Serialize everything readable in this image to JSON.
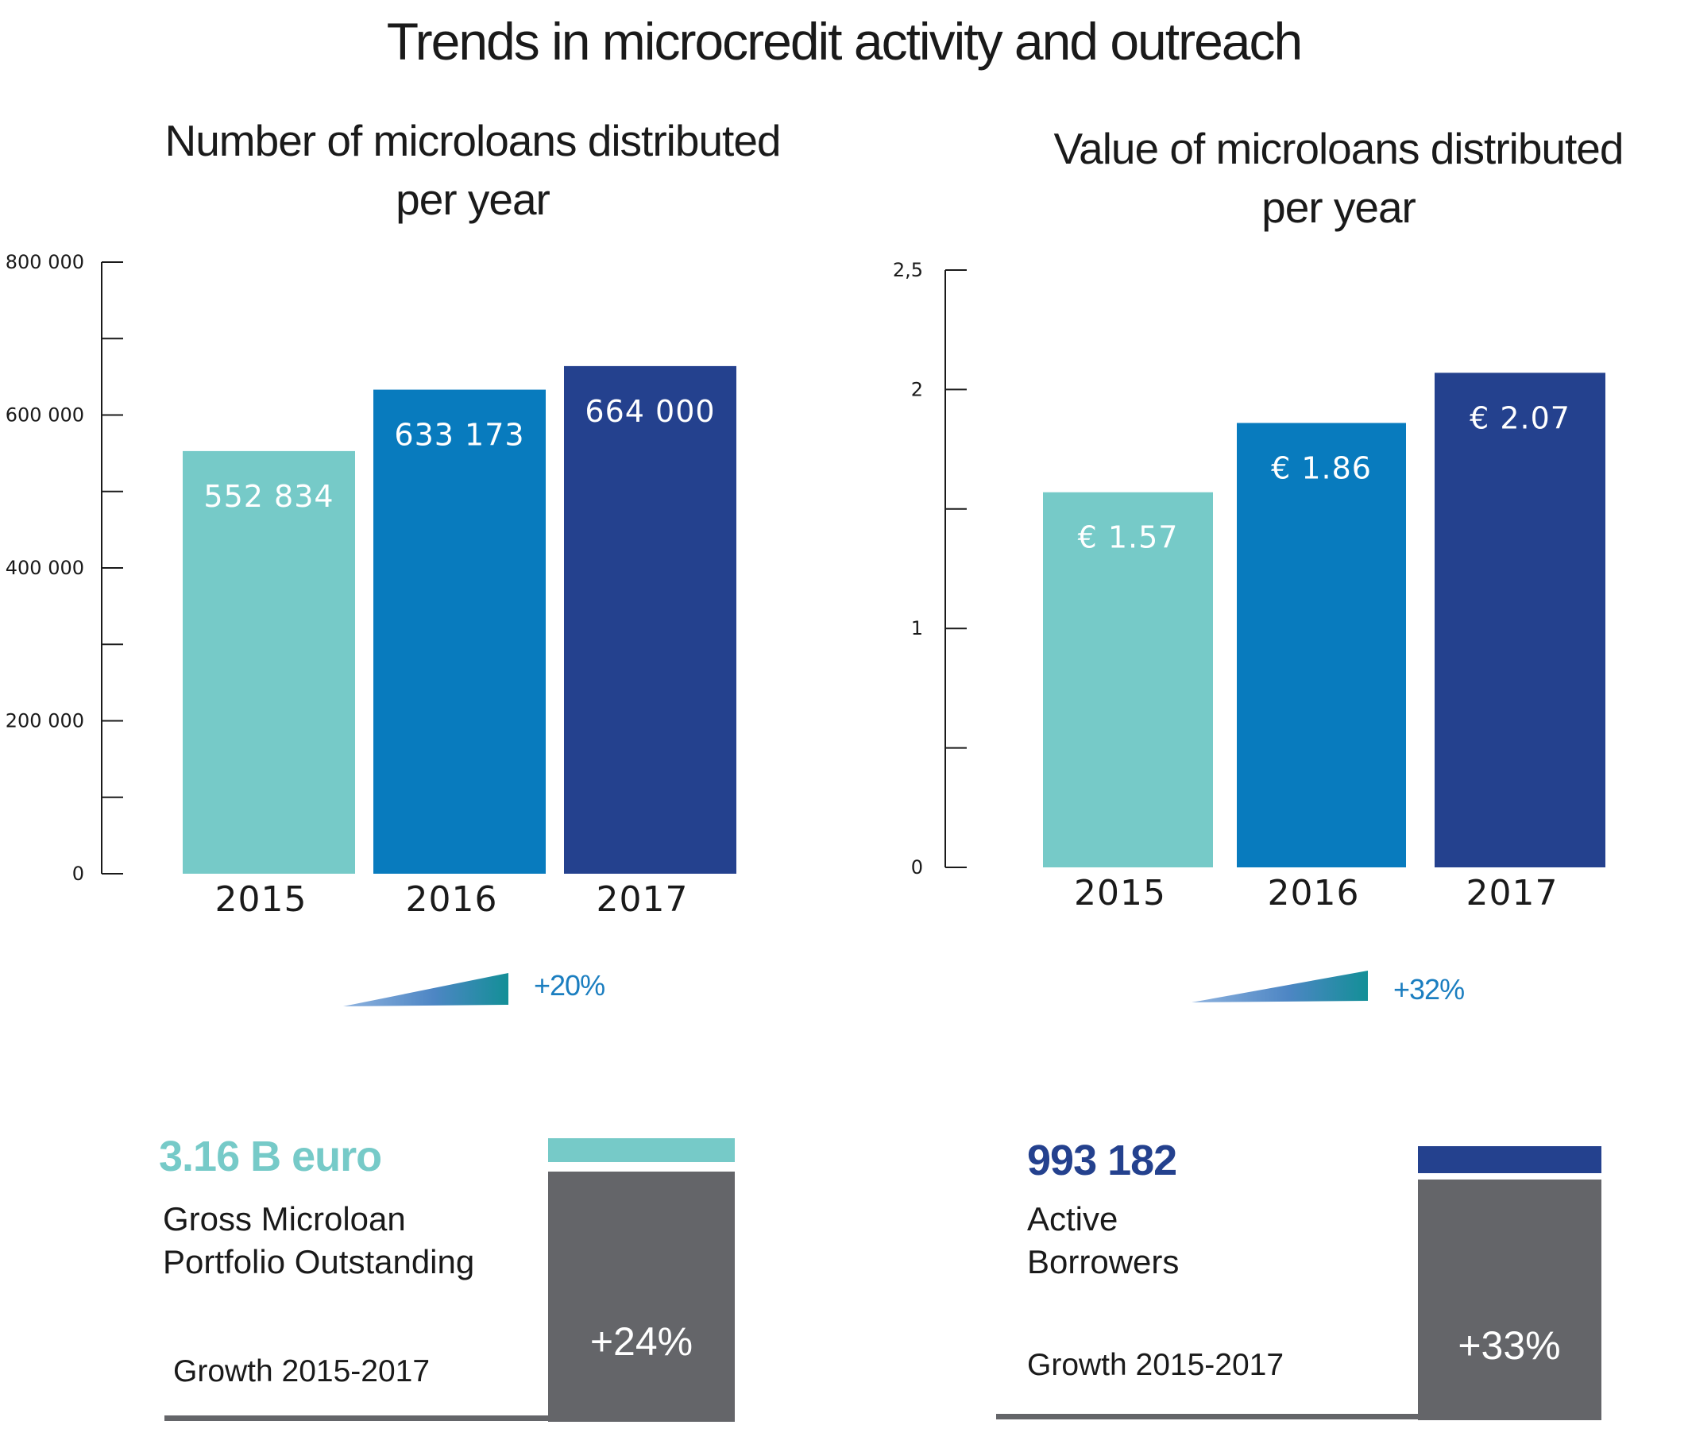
{
  "title": "Trends in microcredit activity and outreach",
  "colors": {
    "c2015": "#76cac8",
    "c2016": "#087bbe",
    "c2017": "#24418e",
    "grey": "#646569",
    "growth_text": "#1b7ec0"
  },
  "chart_data": [
    {
      "type": "bar",
      "title_lines": [
        "Number of microloans distributed",
        "per year"
      ],
      "categories": [
        "2015",
        "2016",
        "2017"
      ],
      "values": [
        552834,
        633173,
        664000
      ],
      "data_labels": [
        "552 834",
        "633 173",
        "664 000"
      ],
      "ylim": [
        0,
        800000
      ],
      "yticks": [
        0,
        200000,
        400000,
        600000,
        800000
      ],
      "ytick_labels": [
        "0",
        "200 000",
        "400 000",
        "600 000",
        "800 000"
      ],
      "minor_ticks": true,
      "grid": false,
      "growth_label": "+20%"
    },
    {
      "type": "bar",
      "title_lines": [
        "Value of microloans distributed",
        "per year"
      ],
      "categories": [
        "2015",
        "2016",
        "2017"
      ],
      "values": [
        1.57,
        1.86,
        2.07
      ],
      "data_labels": [
        "€ 1.57",
        "€ 1.86",
        "€ 2.07"
      ],
      "ylim": [
        0,
        2.5
      ],
      "yticks": [
        0,
        1,
        2,
        2.5
      ],
      "ytick_labels": [
        "0",
        "1",
        "2",
        "2,5"
      ],
      "minor_ticks": true,
      "grid": false,
      "growth_label": "+32%"
    }
  ],
  "stats": [
    {
      "value": "3.16 B euro",
      "desc_lines": [
        "Gross Microloan",
        "Portfolio Outstanding"
      ],
      "growth_label": "Growth 2015-2017",
      "growth_pct": "+24%",
      "growth_fraction": 0.24
    },
    {
      "value": "993 182",
      "desc_lines": [
        "Active",
        "Borrowers"
      ],
      "growth_label": "Growth 2015-2017",
      "growth_pct": "+33%",
      "growth_fraction": 0.33
    }
  ]
}
